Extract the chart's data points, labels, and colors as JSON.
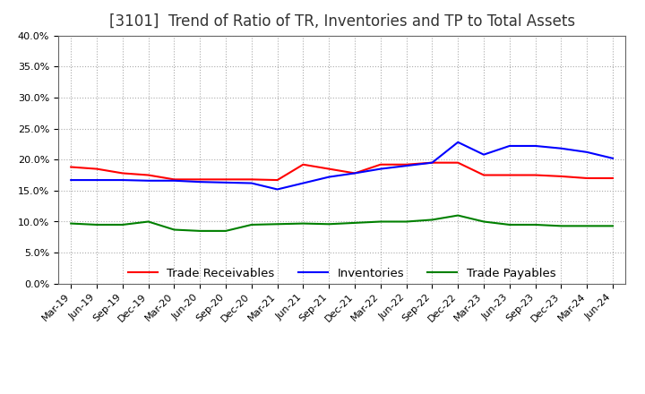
{
  "title": "[3101]  Trend of Ratio of TR, Inventories and TP to Total Assets",
  "x_labels": [
    "Mar-19",
    "Jun-19",
    "Sep-19",
    "Dec-19",
    "Mar-20",
    "Jun-20",
    "Sep-20",
    "Dec-20",
    "Mar-21",
    "Jun-21",
    "Sep-21",
    "Dec-21",
    "Mar-22",
    "Jun-22",
    "Sep-22",
    "Dec-22",
    "Mar-23",
    "Jun-23",
    "Sep-23",
    "Dec-23",
    "Mar-24",
    "Jun-24"
  ],
  "trade_receivables": [
    0.188,
    0.185,
    0.178,
    0.175,
    0.168,
    0.168,
    0.168,
    0.168,
    0.167,
    0.192,
    0.185,
    0.178,
    0.192,
    0.192,
    0.195,
    0.195,
    0.175,
    0.175,
    0.175,
    0.173,
    0.17,
    0.17
  ],
  "inventories": [
    0.167,
    0.167,
    0.167,
    0.166,
    0.166,
    0.164,
    0.163,
    0.162,
    0.152,
    0.162,
    0.172,
    0.178,
    0.185,
    0.19,
    0.195,
    0.228,
    0.208,
    0.222,
    0.222,
    0.218,
    0.212,
    0.202
  ],
  "trade_payables": [
    0.097,
    0.095,
    0.095,
    0.1,
    0.087,
    0.085,
    0.085,
    0.095,
    0.096,
    0.097,
    0.096,
    0.098,
    0.1,
    0.1,
    0.103,
    0.11,
    0.1,
    0.095,
    0.095,
    0.093,
    0.093,
    0.093
  ],
  "tr_color": "#FF0000",
  "inv_color": "#0000FF",
  "tp_color": "#008000",
  "ylim": [
    0.0,
    0.4
  ],
  "yticks": [
    0.0,
    0.05,
    0.1,
    0.15,
    0.2,
    0.25,
    0.3,
    0.35,
    0.4
  ],
  "grid_color": "#aaaaaa",
  "background_color": "#ffffff",
  "title_fontsize": 12,
  "legend_fontsize": 9.5,
  "tick_fontsize": 8
}
